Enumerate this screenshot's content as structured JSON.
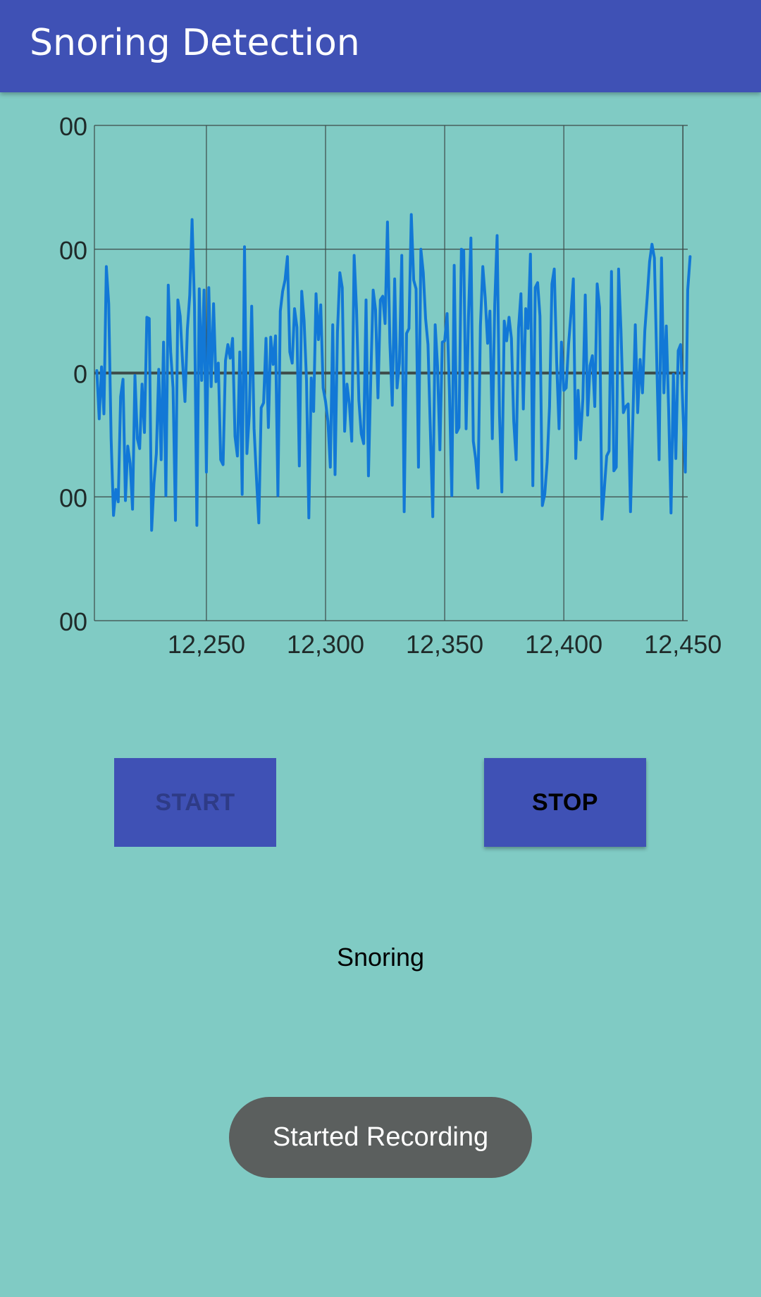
{
  "app_bar": {
    "title": "Snoring Detection"
  },
  "chart_data": {
    "type": "line",
    "y_tick_labels": [
      "00",
      "00",
      "0",
      "00",
      "00"
    ],
    "x_ticks": [
      12250,
      12300,
      12350,
      12400,
      12450
    ],
    "x_tick_labels": [
      "12,250",
      "12,300",
      "12,350",
      "12,400",
      "12,450"
    ],
    "xlim": [
      12203,
      12452
    ],
    "ylim": [
      -2,
      2
    ],
    "grid": true,
    "series_color": "#1278d6",
    "grid_color": "#3c4a48",
    "series": [
      {
        "x_start": 12204,
        "x_step": 1,
        "values": [
          0.02,
          -0.37,
          0.05,
          -0.33,
          0.86,
          0.56,
          -0.53,
          -1.15,
          -0.94,
          -1.04,
          -0.19,
          -0.05,
          -1.03,
          -0.59,
          -0.73,
          -1.1,
          -0.02,
          -0.53,
          -0.61,
          -0.09,
          -0.48,
          0.45,
          0.44,
          -1.27,
          -0.89,
          -0.65,
          0.03,
          -0.7,
          0.25,
          -0.99,
          0.71,
          0.17,
          -0.12,
          -1.19,
          0.59,
          0.46,
          0.09,
          -0.23,
          0.35,
          0.63,
          1.24,
          0.55,
          -1.23,
          0.68,
          -0.06,
          0.67,
          -0.8,
          0.69,
          -0.11,
          0.56,
          -0.07,
          0.08,
          -0.7,
          -0.74,
          0.1,
          0.23,
          0.12,
          0.28,
          -0.51,
          -0.67,
          0.17,
          -0.98,
          1.02,
          -0.65,
          -0.34,
          0.54,
          -0.45,
          -0.84,
          -1.21,
          -0.28,
          -0.24,
          0.28,
          -0.44,
          0.29,
          0.07,
          0.3,
          -0.99,
          0.5,
          0.66,
          0.75,
          0.94,
          0.17,
          0.08,
          0.52,
          0.37,
          -0.75,
          0.66,
          0.42,
          -0.06,
          -1.17,
          -0.04,
          -0.31,
          0.64,
          0.27,
          0.55,
          -0.12,
          -0.23,
          -0.39,
          -0.76,
          0.39,
          -0.82,
          0.33,
          0.81,
          0.69,
          -0.47,
          -0.09,
          -0.25,
          -0.55,
          0.95,
          0.51,
          -0.22,
          -0.49,
          -0.57,
          0.59,
          -0.83,
          -0.02,
          0.67,
          0.51,
          -0.2,
          0.59,
          0.62,
          0.4,
          1.22,
          0.25,
          -0.26,
          0.76,
          -0.12,
          0.08,
          0.95,
          -1.12,
          0.32,
          0.36,
          1.28,
          0.75,
          0.68,
          -0.76,
          1.0,
          0.81,
          0.44,
          0.23,
          -0.47,
          -1.16,
          0.39,
          0.06,
          -0.62,
          0.25,
          0.26,
          0.48,
          -0.14,
          -0.99,
          0.87,
          -0.48,
          -0.44,
          1.0,
          0.99,
          -0.45,
          0.46,
          1.09,
          -0.55,
          -0.69,
          -0.93,
          0.38,
          0.86,
          0.61,
          0.24,
          0.5,
          -0.53,
          0.55,
          1.11,
          -0.34,
          -0.96,
          0.42,
          0.26,
          0.45,
          0.28,
          -0.39,
          -0.7,
          0.36,
          0.64,
          -0.29,
          0.52,
          0.36,
          0.96,
          -0.91,
          0.69,
          0.73,
          0.46,
          -1.07,
          -0.98,
          -0.72,
          -0.27,
          0.72,
          0.84,
          0.09,
          -0.45,
          0.25,
          -0.14,
          -0.12,
          0.23,
          0.48,
          0.76,
          -0.69,
          -0.14,
          -0.54,
          -0.21,
          0.63,
          -0.34,
          0.06,
          0.14,
          -0.27,
          0.72,
          0.53,
          -1.18,
          -0.94,
          -0.67,
          -0.63,
          0.82,
          -0.79,
          -0.76,
          0.84,
          0.34,
          -0.32,
          -0.27,
          -0.25,
          -1.12,
          -0.36,
          0.39,
          -0.32,
          0.11,
          -0.16,
          0.34,
          0.61,
          0.9,
          1.04,
          0.93,
          0.11,
          -0.7,
          0.93,
          -0.16,
          0.38,
          -0.29,
          -1.13,
          -0.01,
          -0.69,
          0.18,
          0.23,
          -0.3,
          -0.8,
          0.67,
          0.94
        ]
      }
    ]
  },
  "buttons": {
    "start_label": "Start",
    "stop_label": "Stop"
  },
  "status": {
    "text": "Snoring"
  },
  "toast": {
    "text": "Started Recording"
  },
  "colors": {
    "app_bar": "#3f51b5",
    "background": "#80cbc4",
    "button": "#3f51b5",
    "button_disabled_text": "#2e3b86",
    "toast": "#5b5f5e"
  }
}
